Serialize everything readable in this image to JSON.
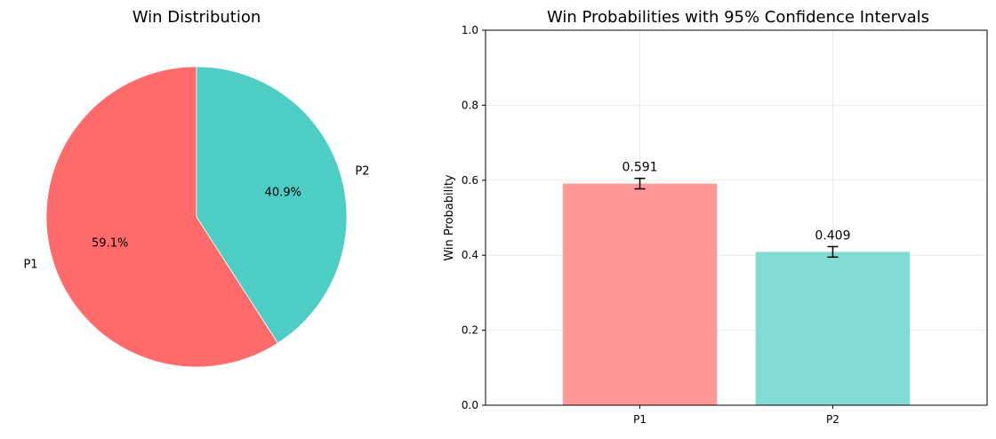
{
  "chart_data": [
    {
      "type": "pie",
      "title": "Win Distribution",
      "labels": [
        "P1",
        "P2"
      ],
      "values": [
        59.1,
        40.9
      ],
      "pct_labels": [
        "59.1%",
        "40.9%"
      ],
      "colors": [
        "#ff6b6b",
        "#4ecdc4"
      ],
      "start_angle_deg": 90,
      "direction": "counterclockwise"
    },
    {
      "type": "bar",
      "title": "Win Probabilities with 95% Confidence Intervals",
      "categories": [
        "P1",
        "P2"
      ],
      "values": [
        0.591,
        0.409
      ],
      "value_labels": [
        "0.591",
        "0.409"
      ],
      "ci_half_width": [
        0.014,
        0.014
      ],
      "colors": [
        "#ff9896",
        "#83dbd6"
      ],
      "xlabel": "",
      "ylabel": "Win Probability",
      "ylim": [
        0,
        1.0
      ],
      "yticks": [
        "0.0",
        "0.2",
        "0.4",
        "0.6",
        "0.8",
        "1.0"
      ],
      "grid": true
    }
  ]
}
